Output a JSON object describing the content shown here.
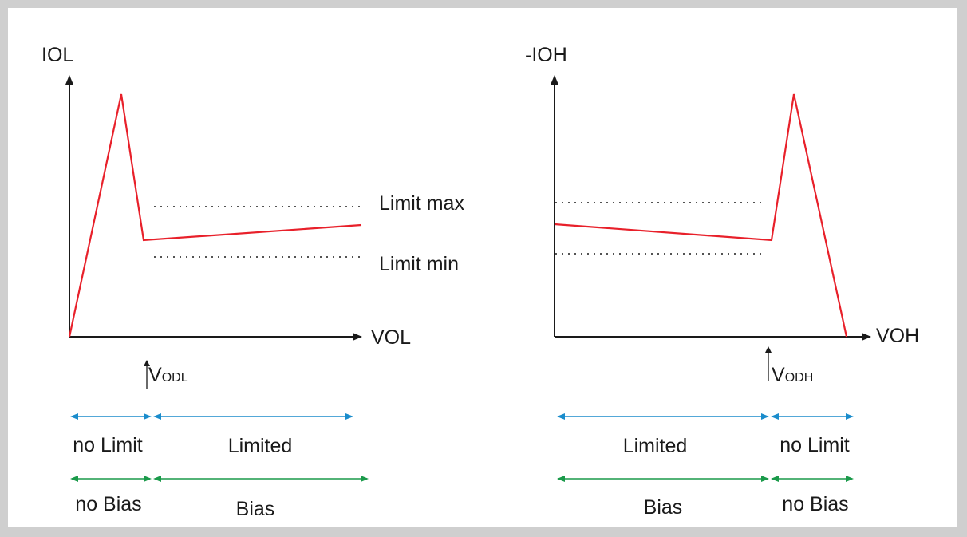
{
  "colors": {
    "curve": "#e8202a",
    "axis": "#1a1a1a",
    "limit_arrow": "#1a8ccc",
    "bias_arrow": "#1a9a4a",
    "frame_border": "#cfcfcf"
  },
  "left_diagram": {
    "y_axis_label": "IOL",
    "x_axis_label": "VOL",
    "limit_max_label": "Limit max",
    "limit_min_label": "Limit min",
    "marker_main": "V",
    "marker_sub": "ODL",
    "limit_row": [
      "no Limit",
      "Limited"
    ],
    "bias_row": [
      "no Bias",
      "Bias"
    ]
  },
  "right_diagram": {
    "y_axis_label": "-IOH",
    "x_axis_label": "VOH",
    "marker_main": "V",
    "marker_sub": "ODH",
    "limit_row": [
      "Limited",
      "no Limit"
    ],
    "bias_row": [
      "Bias",
      "no Bias"
    ]
  }
}
